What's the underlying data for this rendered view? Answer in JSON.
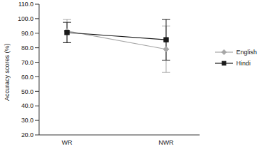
{
  "chart_data": {
    "type": "line",
    "y_label": "Accuracy scores (%)",
    "categories": [
      "WR",
      "NWR"
    ],
    "series": [
      {
        "name": "English",
        "color": "#a6a6a6",
        "marker": "diamond",
        "values": [
          91.5,
          79.0
        ],
        "errors": [
          8.0,
          16.0
        ]
      },
      {
        "name": "Hindi",
        "color": "#1a1a1a",
        "marker": "square",
        "values": [
          90.5,
          85.5
        ],
        "errors": [
          7.0,
          14.0
        ]
      }
    ],
    "ylim": [
      20,
      110
    ],
    "yticks": [
      {
        "value": 20,
        "label": "20.0"
      },
      {
        "value": 30,
        "label": "30.0"
      },
      {
        "value": 40,
        "label": "40.0"
      },
      {
        "value": 50,
        "label": "50.0"
      },
      {
        "value": 60,
        "label": "60.0"
      },
      {
        "value": 70,
        "label": "70.0"
      },
      {
        "value": 80,
        "label": "80.0"
      },
      {
        "value": 90,
        "label": "90.0"
      },
      {
        "value": 100,
        "label": "100.0"
      },
      {
        "value": 110,
        "label": "110.0"
      }
    ],
    "grid": false,
    "legend": "right"
  }
}
